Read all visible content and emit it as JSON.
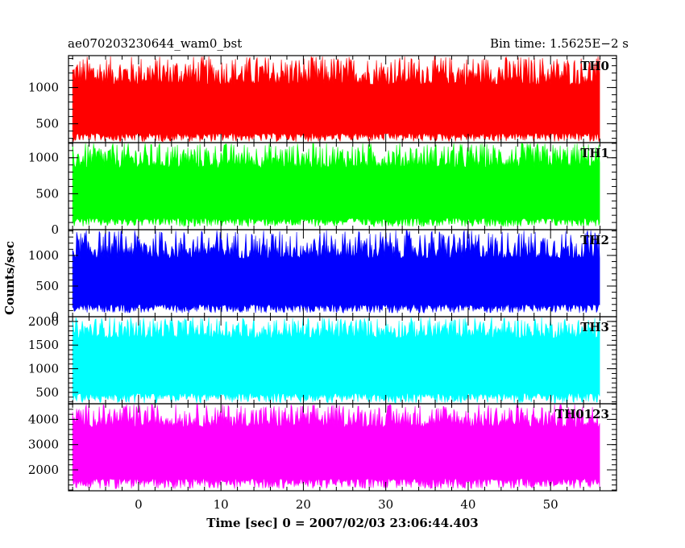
{
  "header": {
    "title": "ae070203230644_wam0_bst",
    "bin_time": "Bin time: 1.5625E−2 s"
  },
  "chart_data": {
    "type": "line",
    "title": "ae070203230644_wam0_bst",
    "subtitle": "Bin time: 1.5625E−2 s",
    "xlabel": "Time [sec] 0 = 2007/02/03 23:06:44.403",
    "ylabel": "Counts/sec",
    "xlim": [
      -8.5,
      58
    ],
    "x_ticks": [
      0,
      10,
      20,
      30,
      40,
      50
    ],
    "x_tick_labels": [
      "0",
      "10",
      "20",
      "30",
      "40",
      "50"
    ],
    "data_x_range": [
      -8.0,
      56.0
    ],
    "x_step": 0.015625,
    "panels": [
      {
        "name": "TH0",
        "color": "#ff0000",
        "ylim": [
          240,
          1440
        ],
        "y_ticks": [
          500,
          1000
        ],
        "y_tick_labels": [
          "500",
          "1000"
        ],
        "band_low": [
          250,
          370
        ],
        "band_high": [
          1040,
          1440
        ]
      },
      {
        "name": "TH1",
        "color": "#00ff00",
        "ylim": [
          0,
          1210
        ],
        "y_ticks": [
          0,
          500,
          1000
        ],
        "y_tick_labels": [
          "0",
          "500",
          "1000"
        ],
        "band_low": [
          40,
          160
        ],
        "band_high": [
          860,
          1210
        ]
      },
      {
        "name": "TH2",
        "color": "#0000ff",
        "ylim": [
          0,
          1420
        ],
        "y_ticks": [
          0,
          500,
          1000
        ],
        "y_tick_labels": [
          "0",
          "500",
          "1000"
        ],
        "band_low": [
          60,
          200
        ],
        "band_high": [
          950,
          1420
        ]
      },
      {
        "name": "TH3",
        "color": "#00ffff",
        "ylim": [
          260,
          2100
        ],
        "y_ticks": [
          500,
          1000,
          1500,
          2000
        ],
        "y_tick_labels": [
          "500",
          "1000",
          "1500",
          "2000"
        ],
        "band_low": [
          270,
          480
        ],
        "band_high": [
          1650,
          2100
        ]
      },
      {
        "name": "TH0123",
        "color": "#ff00ff",
        "ylim": [
          1170,
          4620
        ],
        "y_ticks": [
          2000,
          3000,
          4000
        ],
        "y_tick_labels": [
          "2000",
          "3000",
          "4000"
        ],
        "band_low": [
          1250,
          1650
        ],
        "band_high": [
          3700,
          4620
        ]
      }
    ],
    "grid": false,
    "legend": "none"
  }
}
